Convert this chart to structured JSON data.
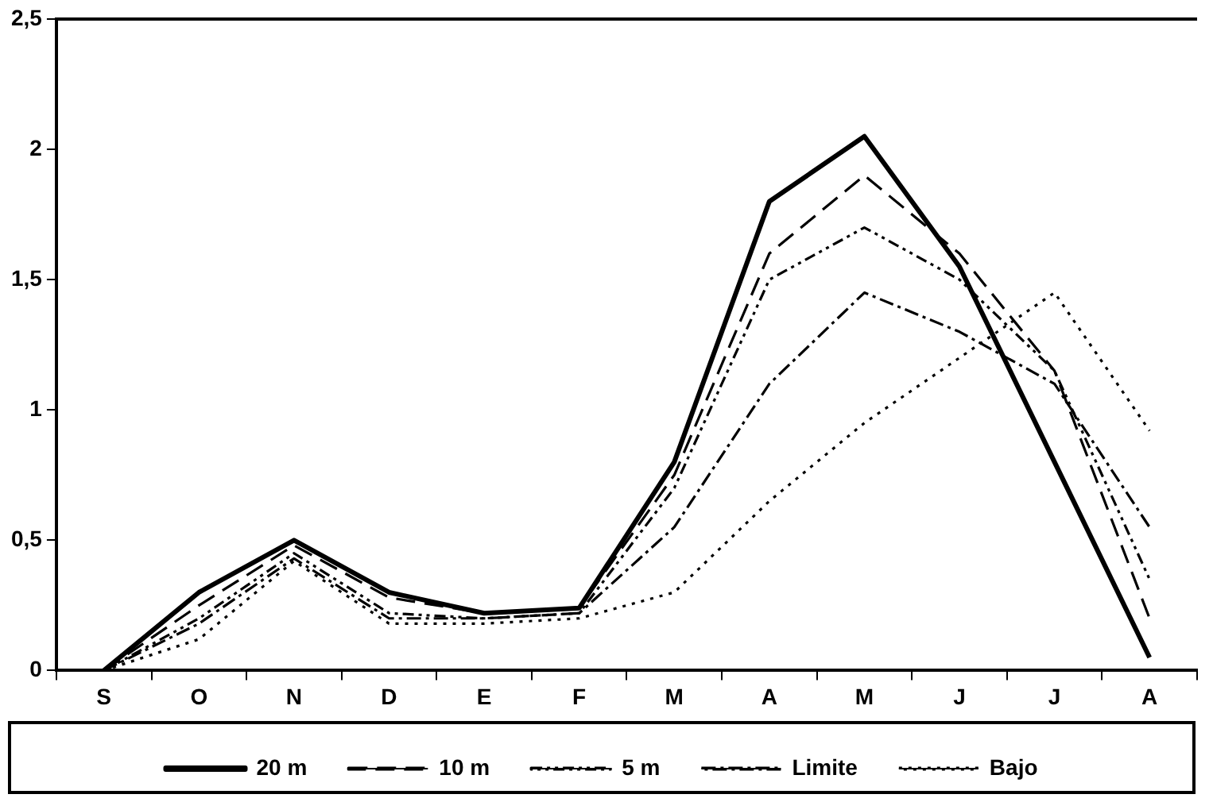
{
  "chart_data": {
    "type": "line",
    "categories": [
      "S",
      "O",
      "N",
      "D",
      "E",
      "F",
      "M",
      "A",
      "M",
      "J",
      "J",
      "A"
    ],
    "series": [
      {
        "name": "20 m",
        "color": "#000000",
        "line_style": "solid",
        "values": [
          0,
          0.3,
          0.5,
          0.3,
          0.22,
          0.24,
          0.8,
          1.8,
          2.05,
          1.55,
          0.8,
          0.05
        ]
      },
      {
        "name": "10 m",
        "color": "#000000",
        "line_style": "dashed",
        "values": [
          0,
          0.25,
          0.48,
          0.28,
          0.22,
          0.24,
          0.75,
          1.6,
          1.9,
          1.6,
          1.15,
          0.2
        ]
      },
      {
        "name": "5 m",
        "color": "#000000",
        "line_style": "dashdotdot",
        "values": [
          0,
          0.2,
          0.45,
          0.22,
          0.2,
          0.22,
          0.7,
          1.5,
          1.7,
          1.5,
          1.15,
          0.35
        ]
      },
      {
        "name": "Limite",
        "color": "#000000",
        "line_style": "dashdot",
        "values": [
          0,
          0.18,
          0.43,
          0.2,
          0.2,
          0.22,
          0.55,
          1.1,
          1.45,
          1.3,
          1.1,
          0.55
        ]
      },
      {
        "name": "Bajo",
        "color": "#000000",
        "line_style": "dotted",
        "values": [
          0,
          0.12,
          0.42,
          0.18,
          0.18,
          0.2,
          0.3,
          0.65,
          0.95,
          1.2,
          1.45,
          0.92
        ]
      }
    ],
    "ylim": [
      0,
      2.5
    ],
    "yticks": [
      0,
      {
        "value": 0.5,
        "label": "0,5"
      },
      1,
      {
        "value": 1.5,
        "label": "1,5"
      },
      2,
      {
        "value": 2.5,
        "label": "2,5"
      }
    ],
    "grid": false,
    "legend": "bottom",
    "marker": "none"
  }
}
